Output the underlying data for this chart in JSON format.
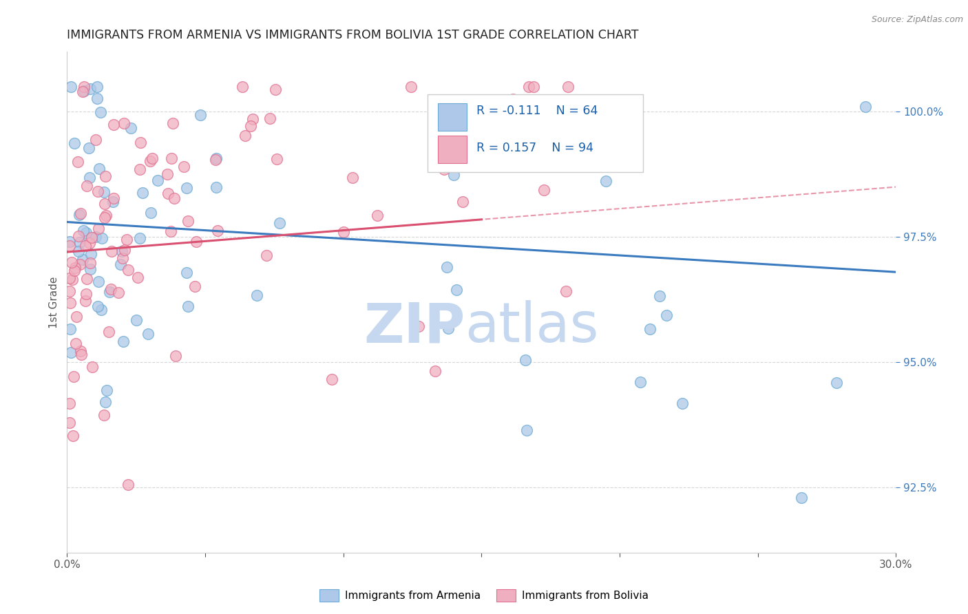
{
  "title": "IMMIGRANTS FROM ARMENIA VS IMMIGRANTS FROM BOLIVIA 1ST GRADE CORRELATION CHART",
  "source": "Source: ZipAtlas.com",
  "ylabel": "1st Grade",
  "x_min": 0.0,
  "x_max": 0.3,
  "y_min": 91.2,
  "y_max": 101.2,
  "x_tick_positions": [
    0.0,
    0.05,
    0.1,
    0.15,
    0.2,
    0.25,
    0.3
  ],
  "x_tick_labels": [
    "0.0%",
    "",
    "",
    "",
    "",
    "",
    "30.0%"
  ],
  "y_tick_positions": [
    92.5,
    95.0,
    97.5,
    100.0
  ],
  "y_tick_labels": [
    "92.5%",
    "95.0%",
    "97.5%",
    "100.0%"
  ],
  "legend_R_armenia": "-0.111",
  "legend_N_armenia": "64",
  "legend_R_bolivia": "0.157",
  "legend_N_bolivia": "94",
  "color_armenia": "#adc8e8",
  "color_bolivia": "#f0afc0",
  "edge_armenia": "#6aaad4",
  "edge_bolivia": "#e07090",
  "trendline_armenia_color": "#3a7abf",
  "trendline_bolivia_color": "#d95070",
  "watermark_zip_color": "#c5d8ef",
  "watermark_atlas_color": "#c5d8ef",
  "background_color": "#ffffff",
  "grid_color": "#cccccc",
  "title_color": "#222222",
  "source_color": "#888888",
  "ytick_color": "#3a7abf",
  "xtick_color": "#555555"
}
